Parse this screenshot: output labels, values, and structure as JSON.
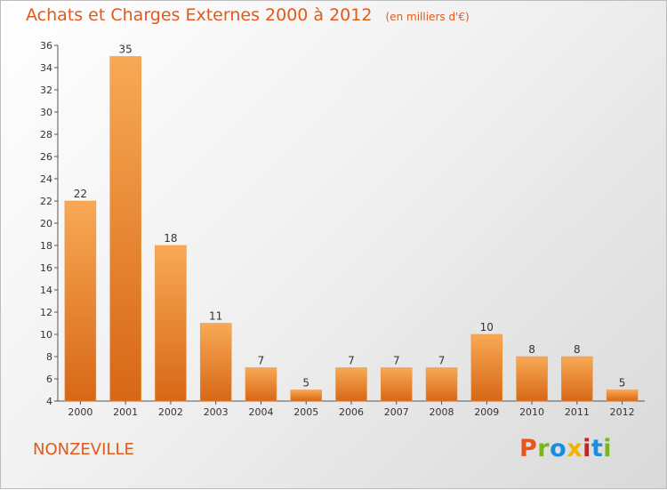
{
  "title": "Achats et Charges Externes 2000 à 2012",
  "subtitle": "(en milliers d'€)",
  "commune": "NONZEVILLE",
  "logo_text": "Proxiti",
  "logo_colors": [
    "#e8541c",
    "#7ab51d",
    "#1c8ce0",
    "#f0b400",
    "#d0201a",
    "#1c8ce0",
    "#7ab51d"
  ],
  "colors": {
    "bar_light": "#f8a955",
    "bar_dark": "#d76716",
    "accent": "#e05a1a"
  },
  "chart_data": {
    "type": "bar",
    "title": "Achats et Charges Externes 2000 à 2012",
    "subtitle": "(en milliers d'€)",
    "categories": [
      "2000",
      "2001",
      "2002",
      "2003",
      "2004",
      "2005",
      "2006",
      "2007",
      "2008",
      "2009",
      "2010",
      "2011",
      "2012"
    ],
    "values": [
      22,
      35,
      18,
      11,
      7,
      5,
      7,
      7,
      7,
      10,
      8,
      8,
      5
    ],
    "ylim": [
      4,
      36
    ],
    "yticks": [
      4,
      6,
      8,
      10,
      12,
      14,
      16,
      18,
      20,
      22,
      24,
      26,
      28,
      30,
      32,
      34,
      36
    ],
    "grid": false,
    "xlabel": "",
    "ylabel": ""
  }
}
